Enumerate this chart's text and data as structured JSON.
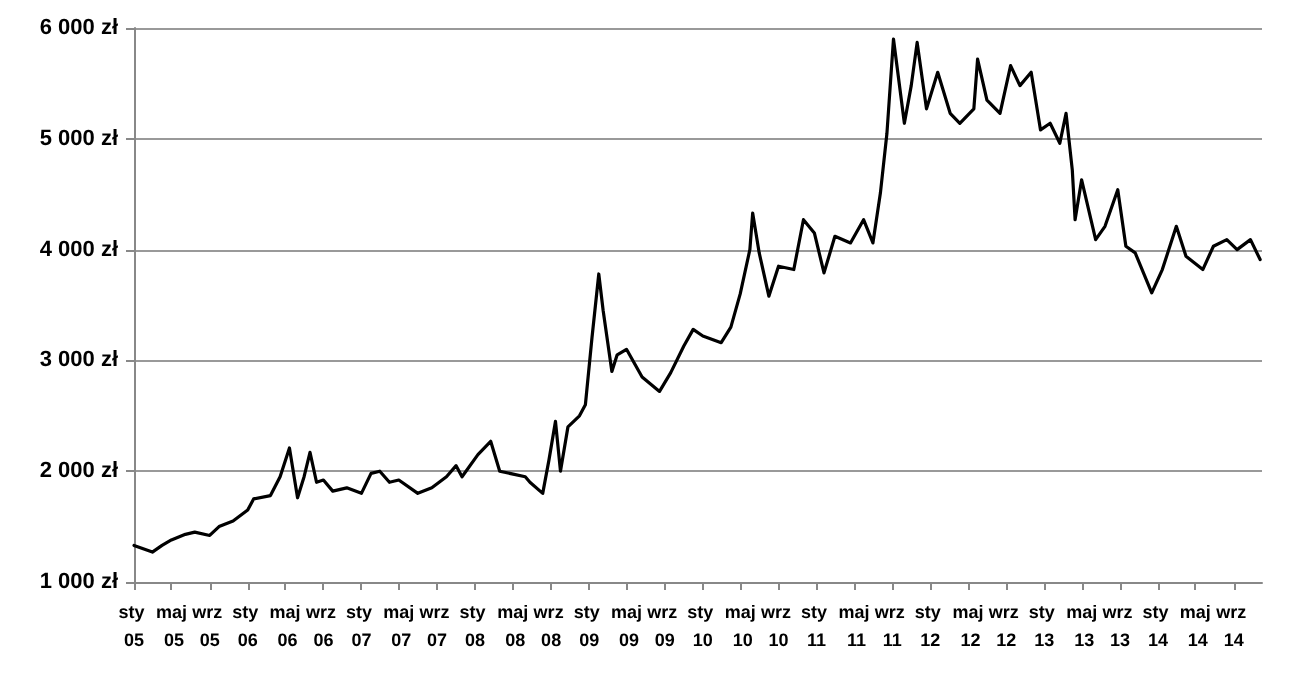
{
  "chart_data": {
    "type": "line",
    "x": [
      "2005-01-01",
      "2005-03-01",
      "2005-04-01",
      "2005-05-01",
      "2005-06-15",
      "2005-07-15",
      "2005-09-01",
      "2005-10-01",
      "2005-11-15",
      "2006-01-01",
      "2006-01-20",
      "2006-03-15",
      "2006-04-15",
      "2006-05-15",
      "2006-06-10",
      "2006-07-01",
      "2006-07-20",
      "2006-08-10",
      "2006-09-01",
      "2006-10-01",
      "2006-11-15",
      "2007-01-01",
      "2007-02-01",
      "2007-03-01",
      "2007-04-01",
      "2007-05-01",
      "2007-07-01",
      "2007-08-15",
      "2007-10-01",
      "2007-11-01",
      "2007-11-20",
      "2008-01-10",
      "2008-02-20",
      "2008-03-20",
      "2008-06-10",
      "2008-06-25",
      "2008-08-05",
      "2008-08-25",
      "2008-09-15",
      "2008-10-01",
      "2008-10-25",
      "2008-12-01",
      "2008-12-20",
      "2009-01-10",
      "2009-02-01",
      "2009-02-15",
      "2009-03-15",
      "2009-04-01",
      "2009-05-01",
      "2009-06-20",
      "2009-08-15",
      "2009-09-20",
      "2009-11-01",
      "2009-12-01",
      "2010-01-01",
      "2010-03-01",
      "2010-04-01",
      "2010-05-01",
      "2010-06-01",
      "2010-06-10",
      "2010-07-01",
      "2010-08-01",
      "2010-09-01",
      "2010-10-20",
      "2010-11-20",
      "2010-12-25",
      "2011-01-25",
      "2011-03-01",
      "2011-04-20",
      "2011-06-01",
      "2011-07-01",
      "2011-07-25",
      "2011-08-15",
      "2011-09-05",
      "2011-10-10",
      "2011-11-01",
      "2011-11-20",
      "2011-12-20",
      "2012-01-25",
      "2012-03-05",
      "2012-04-05",
      "2012-05-20",
      "2012-06-01",
      "2012-07-01",
      "2012-08-12",
      "2012-09-15",
      "2012-10-15",
      "2012-11-20",
      "2012-12-20",
      "2013-01-20",
      "2013-02-20",
      "2013-03-12",
      "2013-04-01",
      "2013-04-10",
      "2013-05-01",
      "2013-06-15",
      "2013-07-15",
      "2013-08-25",
      "2013-09-20",
      "2013-10-20",
      "2013-12-12",
      "2014-01-15",
      "2014-03-01",
      "2014-04-01",
      "2014-05-25",
      "2014-06-28",
      "2014-08-10",
      "2014-09-12",
      "2014-10-25",
      "2014-11-25"
    ],
    "series": [
      {
        "color": "#000000",
        "values": [
          1330,
          1270,
          1330,
          1380,
          1430,
          1450,
          1420,
          1500,
          1550,
          1650,
          1750,
          1780,
          1950,
          2210,
          1760,
          1950,
          2170,
          1900,
          1920,
          1820,
          1850,
          1800,
          1980,
          2000,
          1900,
          1920,
          1800,
          1850,
          1950,
          2050,
          1950,
          2150,
          2270,
          2000,
          1950,
          1900,
          1800,
          2100,
          2450,
          2000,
          2400,
          2500,
          2600,
          3200,
          3780,
          3450,
          2900,
          3050,
          3100,
          2850,
          2720,
          2890,
          3130,
          3280,
          3220,
          3160,
          3300,
          3600,
          4000,
          4330,
          3970,
          3580,
          3850,
          3820,
          4270,
          4150,
          3790,
          4120,
          4060,
          4270,
          4060,
          4510,
          5050,
          5900,
          5140,
          5480,
          5870,
          5270,
          5600,
          5230,
          5140,
          5270,
          5720,
          5350,
          5230,
          5660,
          5480,
          5600,
          5080,
          5140,
          4960,
          5230,
          4720,
          4270,
          4630,
          4090,
          4210,
          4540,
          4030,
          3970,
          3610,
          3820,
          4210,
          3940,
          3820,
          4030,
          4090,
          4000,
          4090,
          3910
        ]
      }
    ],
    "xlim": [
      "2005-01-01",
      "2014-12-01"
    ],
    "xticks": [
      {
        "value": "2005-01",
        "label": "sty 05"
      },
      {
        "value": "2005-05",
        "label": "maj 05"
      },
      {
        "value": "2005-09",
        "label": "wrz 05"
      },
      {
        "value": "2006-01",
        "label": "sty 06"
      },
      {
        "value": "2006-05",
        "label": "maj 06"
      },
      {
        "value": "2006-09",
        "label": "wrz 06"
      },
      {
        "value": "2007-01",
        "label": "sty 07"
      },
      {
        "value": "2007-05",
        "label": "maj 07"
      },
      {
        "value": "2007-09",
        "label": "wrz 07"
      },
      {
        "value": "2008-01",
        "label": "sty 08"
      },
      {
        "value": "2008-05",
        "label": "maj 08"
      },
      {
        "value": "2008-09",
        "label": "wrz 08"
      },
      {
        "value": "2009-01",
        "label": "sty 09"
      },
      {
        "value": "2009-05",
        "label": "maj 09"
      },
      {
        "value": "2009-09",
        "label": "wrz 09"
      },
      {
        "value": "2010-01",
        "label": "sty 10"
      },
      {
        "value": "2010-05",
        "label": "maj 10"
      },
      {
        "value": "2010-09",
        "label": "wrz 10"
      },
      {
        "value": "2011-01",
        "label": "sty 11"
      },
      {
        "value": "2011-05",
        "label": "maj 11"
      },
      {
        "value": "2011-09",
        "label": "wrz 11"
      },
      {
        "value": "2012-01",
        "label": "sty 12"
      },
      {
        "value": "2012-05",
        "label": "maj 12"
      },
      {
        "value": "2012-09",
        "label": "wrz 12"
      },
      {
        "value": "2013-01",
        "label": "sty 13"
      },
      {
        "value": "2013-05",
        "label": "maj 13"
      },
      {
        "value": "2013-09",
        "label": "wrz 13"
      },
      {
        "value": "2014-01",
        "label": "sty 14"
      },
      {
        "value": "2014-05",
        "label": "maj 14"
      },
      {
        "value": "2014-09",
        "label": "wrz 14"
      }
    ],
    "ylim": [
      1000,
      6000
    ],
    "yticks": [
      {
        "value": 1000,
        "label": "1 000 zł"
      },
      {
        "value": 2000,
        "label": "2 000 zł"
      },
      {
        "value": 3000,
        "label": "3 000 zł"
      },
      {
        "value": 4000,
        "label": "4 000 zł"
      },
      {
        "value": 5000,
        "label": "5 000 zł"
      },
      {
        "value": 6000,
        "label": "6 000 zł"
      }
    ],
    "grid": "y",
    "marker": "none",
    "line_style": "solid"
  }
}
